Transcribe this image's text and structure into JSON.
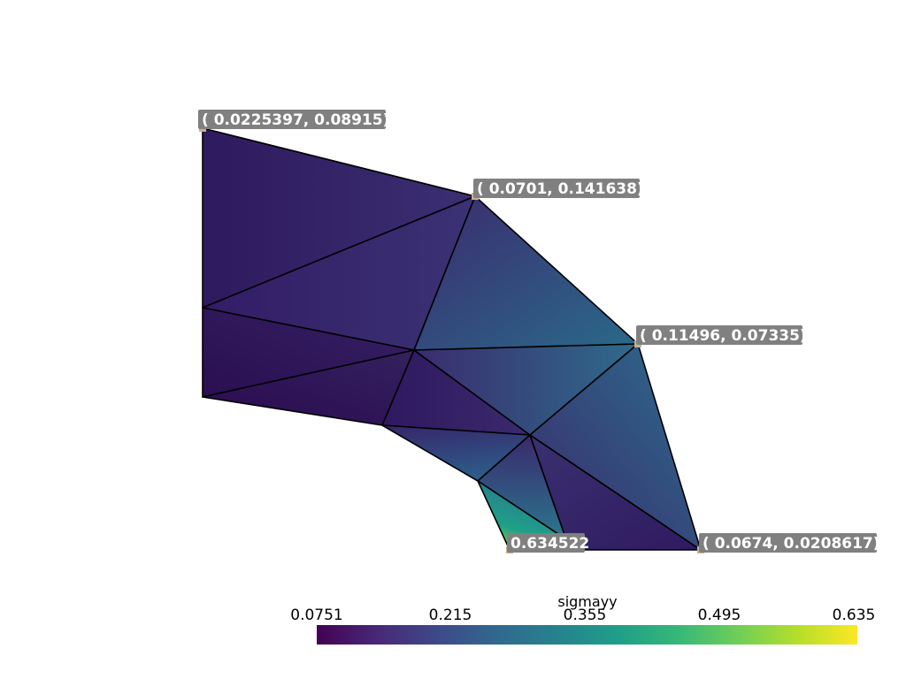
{
  "colormap": [
    "#440154",
    "#482878",
    "#3e4989",
    "#31688e",
    "#26828e",
    "#1f9e89",
    "#35b779",
    "#6ece58",
    "#b5de2b",
    "#fde725"
  ],
  "point_marker_color": "#c8b090",
  "annotations": [
    {
      "text": "( 0.0225397, 0.08915)"
    },
    {
      "text": "( 0.0701, 0.141638)"
    },
    {
      "text": "( 0.11496, 0.07335)"
    },
    {
      "text": "0.634522"
    },
    {
      "text": "( 0.0674, 0.0208617)"
    }
  ],
  "colorbar": {
    "title": "sigmayy",
    "ticks": [
      "0.0751",
      "0.215",
      "0.355",
      "0.495",
      "0.635"
    ],
    "range": [
      0.0751,
      0.635
    ]
  }
}
